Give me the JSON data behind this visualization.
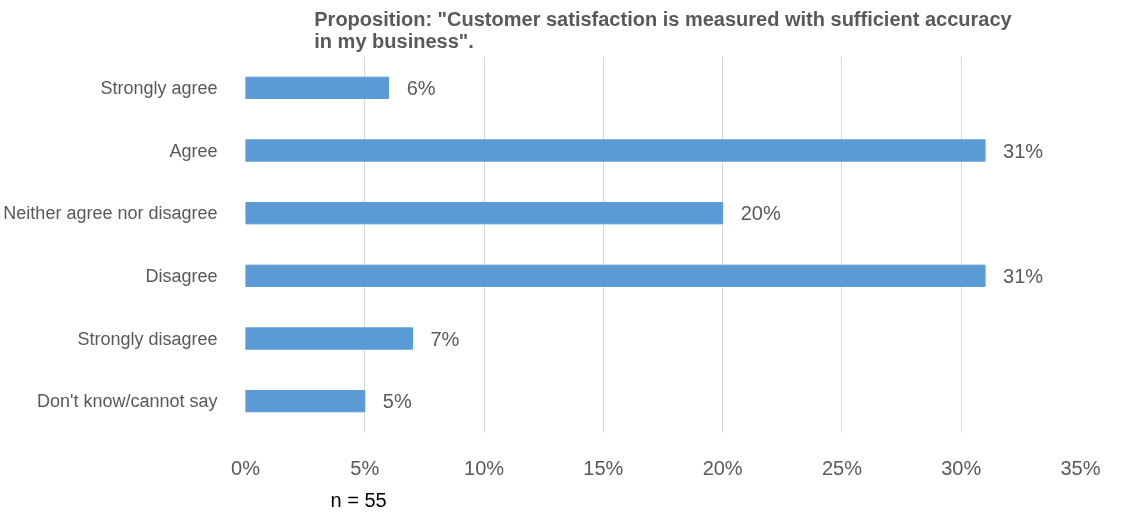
{
  "chart_data": {
    "type": "bar",
    "orientation": "horizontal",
    "title": "Proposition: \"Customer satisfaction is measured with sufficient accuracy in my business\".",
    "categories": [
      "Strongly agree",
      "Agree",
      "Neither agree nor disagree",
      "Disagree",
      "Strongly disagree",
      "Don't know/cannot say"
    ],
    "values": [
      6,
      31,
      20,
      31,
      7,
      5
    ],
    "value_labels": [
      "6%",
      "31%",
      "20%",
      "31%",
      "7%",
      "5%"
    ],
    "color": "#5b9bd5",
    "xlim": [
      0,
      35
    ],
    "xticks": [
      {
        "value": 0,
        "label": "0%"
      },
      {
        "value": 5,
        "label": "5%"
      },
      {
        "value": 10,
        "label": "10%"
      },
      {
        "value": 15,
        "label": "15%"
      },
      {
        "value": 20,
        "label": "20%"
      },
      {
        "value": 25,
        "label": "25%"
      },
      {
        "value": 30,
        "label": "30%"
      },
      {
        "value": 35,
        "label": "35%"
      }
    ],
    "grid": "x",
    "annotations": [
      "n = 55"
    ]
  }
}
